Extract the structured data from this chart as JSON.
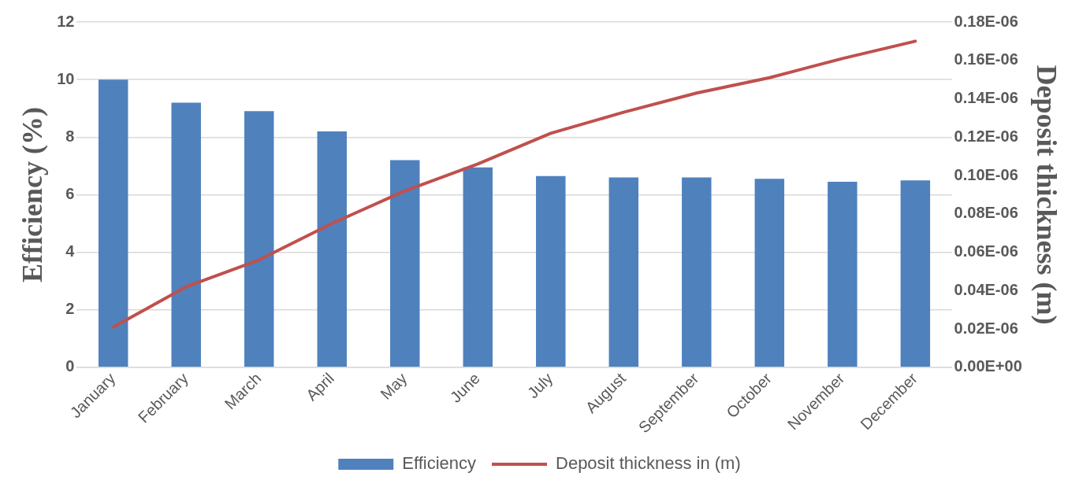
{
  "chart_data": {
    "type": "bar",
    "ylabel": "Efficiency (%)",
    "y2label": "Deposit thickness (m)",
    "categories": [
      "January",
      "February",
      "March",
      "April",
      "May",
      "June",
      "July",
      "August",
      "September",
      "October",
      "November",
      "December"
    ],
    "series": [
      {
        "name": "Efficiency",
        "color": "#4f81bd",
        "values": [
          10.0,
          9.2,
          8.9,
          8.2,
          7.2,
          6.95,
          6.65,
          6.6,
          6.6,
          6.55,
          6.45,
          6.5
        ]
      },
      {
        "name": "Deposit thickness in (m)",
        "type": "line",
        "axis": "y2",
        "color": "#c0504d",
        "values": [
          2.1e-08,
          4.2e-08,
          5.6e-08,
          7.5e-08,
          9.2e-08,
          1.06e-07,
          1.22e-07,
          1.33e-07,
          1.43e-07,
          1.51e-07,
          1.61e-07,
          1.7e-07
        ]
      }
    ],
    "ylim": [
      0,
      12
    ],
    "yticks": [
      0,
      2,
      4,
      6,
      8,
      10,
      12
    ],
    "y2lim": [
      0,
      1.8e-07
    ],
    "y2ticks": [
      {
        "value": 0,
        "label": "0.00E+00"
      },
      {
        "value": 2e-08,
        "label": "0.02E-06"
      },
      {
        "value": 4e-08,
        "label": "0.04E-06"
      },
      {
        "value": 6e-08,
        "label": "0.06E-06"
      },
      {
        "value": 8e-08,
        "label": "0.08E-06"
      },
      {
        "value": 1e-07,
        "label": "0.10E-06"
      },
      {
        "value": 1.2e-07,
        "label": "0.12E-06"
      },
      {
        "value": 1.4e-07,
        "label": "0.14E-06"
      },
      {
        "value": 1.6e-07,
        "label": "0.16E-06"
      },
      {
        "value": 1.8e-07,
        "label": "0.18E-06"
      }
    ],
    "grid": "y",
    "legend": "bottom",
    "marker": "none",
    "line_style": "solid"
  }
}
